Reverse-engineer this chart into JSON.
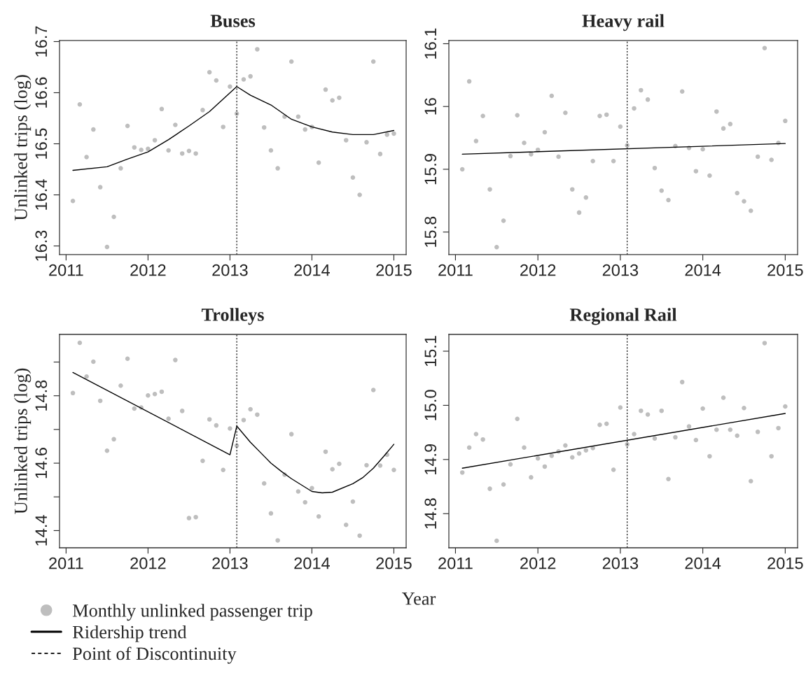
{
  "chart_data": [
    {
      "type": "scatter",
      "title": "Buses",
      "ylabel": "Unlinked trips (log)",
      "xlabel": "Year",
      "legend": "bottom left",
      "grid": false,
      "x": [
        2011.083,
        2011.167,
        2011.25,
        2011.333,
        2011.417,
        2011.5,
        2011.583,
        2011.667,
        2011.75,
        2011.833,
        2011.917,
        2012,
        2012.083,
        2012.167,
        2012.25,
        2012.333,
        2012.417,
        2012.5,
        2012.583,
        2012.667,
        2012.75,
        2012.833,
        2012.917,
        2013,
        2013.083,
        2013.167,
        2013.25,
        2013.333,
        2013.417,
        2013.5,
        2013.583,
        2013.667,
        2013.75,
        2013.833,
        2013.917,
        2014,
        2014.083,
        2014.167,
        2014.25,
        2014.333,
        2014.417,
        2014.5,
        2014.583,
        2014.667,
        2014.75,
        2014.833,
        2014.917,
        2015
      ],
      "xlim": [
        2010.92,
        2015.15
      ],
      "xticks": [
        2011,
        2012,
        2013,
        2014,
        2015
      ],
      "ylim": [
        16.283,
        16.702
      ],
      "yticks": [
        16.3,
        16.4,
        16.5,
        16.6,
        16.7
      ],
      "series": [
        {
          "name": "Monthly unlinked passenger trip",
          "marker": "circle",
          "color": "#bebebe",
          "values": [
            16.388,
            16.577,
            16.474,
            16.528,
            16.415,
            16.298,
            16.357,
            16.452,
            16.535,
            16.493,
            16.488,
            16.49,
            16.507,
            16.568,
            16.487,
            16.537,
            16.481,
            16.486,
            16.481,
            16.566,
            16.64,
            16.624,
            16.533,
            16.612,
            16.559,
            16.626,
            16.632,
            16.685,
            16.532,
            16.487,
            16.452,
            16.553,
            16.661,
            16.553,
            16.528,
            16.533,
            16.463,
            16.606,
            16.585,
            16.59,
            16.507,
            16.434,
            16.4,
            16.503,
            16.661,
            16.48,
            16.518,
            16.52
          ]
        },
        {
          "name": "Ridership trend",
          "type": "line",
          "color": "#000000",
          "line_style": "solid",
          "x": [
            2011.083,
            2011.5,
            2011.75,
            2012,
            2012.25,
            2012.5,
            2012.75,
            2013.083,
            2013.25,
            2013.5,
            2013.75,
            2014,
            2014.25,
            2014.5,
            2014.75,
            2015
          ],
          "values": [
            16.448,
            16.455,
            16.47,
            16.484,
            16.508,
            16.535,
            16.563,
            16.612,
            16.595,
            16.576,
            16.548,
            16.533,
            16.523,
            16.518,
            16.518,
            16.526
          ]
        }
      ],
      "ref_lines": [
        {
          "axis": "x",
          "value": 2013.083,
          "label": "Point of Discontinuity",
          "color": "#000000",
          "line_style": "dashed"
        }
      ]
    },
    {
      "type": "scatter",
      "title": "Heavy rail",
      "grid": false,
      "x": [
        2011.083,
        2011.167,
        2011.25,
        2011.333,
        2011.417,
        2011.5,
        2011.583,
        2011.667,
        2011.75,
        2011.833,
        2011.917,
        2012,
        2012.083,
        2012.167,
        2012.25,
        2012.333,
        2012.417,
        2012.5,
        2012.583,
        2012.667,
        2012.75,
        2012.833,
        2012.917,
        2013,
        2013.083,
        2013.167,
        2013.25,
        2013.333,
        2013.417,
        2013.5,
        2013.583,
        2013.667,
        2013.75,
        2013.833,
        2013.917,
        2014,
        2014.083,
        2014.167,
        2014.25,
        2014.333,
        2014.417,
        2014.5,
        2014.583,
        2014.667,
        2014.75,
        2014.833,
        2014.917,
        2015
      ],
      "xlim": [
        2010.92,
        2015.15
      ],
      "xticks": [
        2011,
        2012,
        2013,
        2014,
        2015
      ],
      "ylim": [
        15.764,
        16.105
      ],
      "yticks": [
        15.8,
        15.9,
        16,
        16.1
      ],
      "series": [
        {
          "marker": "circle",
          "color": "#bebebe",
          "values": [
            15.9,
            16.04,
            15.945,
            15.985,
            15.868,
            15.776,
            15.818,
            15.921,
            15.986,
            15.942,
            15.924,
            15.931,
            15.959,
            16.017,
            15.92,
            15.99,
            15.868,
            15.831,
            15.855,
            15.913,
            15.985,
            15.987,
            15.913,
            15.968,
            15.938,
            15.997,
            16.026,
            16.011,
            15.902,
            15.866,
            15.851,
            15.937,
            16.024,
            15.934,
            15.897,
            15.932,
            15.89,
            15.992,
            15.965,
            15.972,
            15.862,
            15.849,
            15.834,
            15.92,
            16.093,
            15.915,
            15.942,
            15.977
          ]
        },
        {
          "type": "line",
          "color": "#000000",
          "line_style": "solid",
          "x": [
            2011.083,
            2015
          ],
          "values": [
            15.924,
            15.941
          ]
        }
      ],
      "ref_lines": [
        {
          "axis": "x",
          "value": 2013.083,
          "color": "#000000",
          "line_style": "dashed"
        }
      ]
    },
    {
      "type": "scatter",
      "title": "Trolleys",
      "ylabel": "Unlinked trips (log)",
      "grid": false,
      "x": [
        2011.083,
        2011.167,
        2011.25,
        2011.333,
        2011.417,
        2011.5,
        2011.583,
        2011.667,
        2011.75,
        2011.833,
        2011.917,
        2012,
        2012.083,
        2012.167,
        2012.25,
        2012.333,
        2012.417,
        2012.5,
        2012.583,
        2012.667,
        2012.75,
        2012.833,
        2012.917,
        2013,
        2013.083,
        2013.167,
        2013.25,
        2013.333,
        2013.417,
        2013.5,
        2013.583,
        2013.667,
        2013.75,
        2013.833,
        2013.917,
        2014,
        2014.083,
        2014.167,
        2014.25,
        2014.333,
        2014.417,
        2014.5,
        2014.583,
        2014.667,
        2014.75,
        2014.833,
        2014.917,
        2015
      ],
      "xlim": [
        2010.92,
        2015.15
      ],
      "xticks": [
        2011,
        2012,
        2013,
        2014,
        2015
      ],
      "ylim": [
        14.349,
        14.982
      ],
      "yticks": [
        14.4,
        {
          "value": 14.5,
          "label": null
        },
        14.6,
        {
          "value": 14.7,
          "label": null
        },
        14.8,
        {
          "value": 14.9,
          "label": null
        }
      ],
      "series": [
        {
          "marker": "circle",
          "color": "#bebebe",
          "values": [
            14.808,
            14.957,
            14.857,
            14.901,
            14.785,
            14.637,
            14.671,
            14.83,
            14.91,
            14.762,
            14.765,
            14.801,
            14.805,
            14.812,
            14.732,
            14.906,
            14.755,
            14.437,
            14.44,
            14.607,
            14.73,
            14.712,
            14.58,
            14.703,
            14.652,
            14.728,
            14.76,
            14.744,
            14.54,
            14.451,
            14.371,
            14.566,
            14.686,
            14.516,
            14.484,
            14.526,
            14.442,
            14.634,
            14.582,
            14.598,
            14.417,
            14.486,
            14.385,
            14.594,
            14.817,
            14.593,
            14.625,
            14.58
          ]
        },
        {
          "type": "line",
          "color": "#000000",
          "line_style": "solid",
          "x": [
            2011.083,
            2013,
            2013.083,
            2013.25,
            2013.375,
            2013.5,
            2013.625,
            2013.75,
            2014,
            2014.125,
            2014.25,
            2014.5,
            2014.625,
            2014.75,
            2014.875,
            2015
          ],
          "values": [
            14.869,
            14.625,
            14.71,
            14.662,
            14.631,
            14.6,
            14.576,
            14.554,
            14.516,
            14.512,
            14.514,
            14.539,
            14.558,
            14.585,
            14.62,
            14.656
          ]
        }
      ],
      "ref_lines": [
        {
          "axis": "x",
          "value": 2013.083,
          "color": "#000000",
          "line_style": "dashed"
        }
      ]
    },
    {
      "type": "scatter",
      "title": "Regional Rail",
      "grid": false,
      "x": [
        2011.083,
        2011.167,
        2011.25,
        2011.333,
        2011.417,
        2011.5,
        2011.583,
        2011.667,
        2011.75,
        2011.833,
        2011.917,
        2012,
        2012.083,
        2012.167,
        2012.25,
        2012.333,
        2012.417,
        2012.5,
        2012.583,
        2012.667,
        2012.75,
        2012.833,
        2012.917,
        2013,
        2013.083,
        2013.167,
        2013.25,
        2013.333,
        2013.417,
        2013.5,
        2013.583,
        2013.667,
        2013.75,
        2013.833,
        2013.917,
        2014,
        2014.083,
        2014.167,
        2014.25,
        2014.333,
        2014.417,
        2014.5,
        2014.583,
        2014.667,
        2014.75,
        2014.833,
        2014.917,
        2015
      ],
      "xlim": [
        2010.92,
        2015.15
      ],
      "xticks": [
        2011,
        2012,
        2013,
        2014,
        2015
      ],
      "ylim": [
        14.737,
        15.131
      ],
      "yticks": [
        14.8,
        14.9,
        {
          "value": 15.0,
          "label": "15.0"
        },
        15.1
      ],
      "series": [
        {
          "marker": "circle",
          "color": "#bebebe",
          "values": [
            14.876,
            14.922,
            14.947,
            14.937,
            14.846,
            14.75,
            14.854,
            14.891,
            14.975,
            14.922,
            14.867,
            14.902,
            14.887,
            14.907,
            14.915,
            14.926,
            14.904,
            14.911,
            14.917,
            14.921,
            14.964,
            14.966,
            14.881,
            14.996,
            14.928,
            14.947,
            14.99,
            14.983,
            14.939,
            14.99,
            14.864,
            14.941,
            15.043,
            14.961,
            14.936,
            14.994,
            14.906,
            14.955,
            15.014,
            14.955,
            14.944,
            14.995,
            14.86,
            14.951,
            15.115,
            14.906,
            14.958,
            14.998
          ]
        },
        {
          "type": "line",
          "color": "#000000",
          "line_style": "solid",
          "x": [
            2011.083,
            2015
          ],
          "values": [
            14.884,
            14.985
          ]
        }
      ],
      "ref_lines": [
        {
          "axis": "x",
          "value": 2013.083,
          "color": "#000000",
          "line_style": "dashed"
        }
      ]
    }
  ]
}
